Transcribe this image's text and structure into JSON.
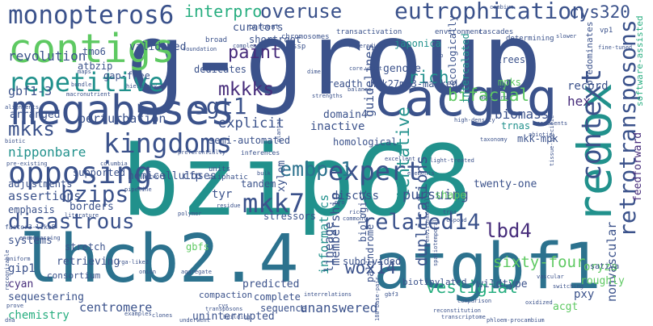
{
  "cloud": {
    "palette": {
      "purple": "#440154",
      "indigo": "#472d7b",
      "blue": "#3b528b",
      "slate": "#2c728e",
      "teal": "#21918c",
      "green": "#28ae80",
      "lime": "#5ec962",
      "yellow": "#addc30"
    },
    "words": [
      {
        "text": "g-group",
        "color": "#3b528b"
      },
      {
        "text": "bzip68",
        "color": "#21918c"
      },
      {
        "text": "lhcb2.4",
        "color": "#2c728e"
      },
      {
        "text": "atgbf1",
        "color": "#2c728e"
      },
      {
        "text": "megabases",
        "color": "#3b528b"
      },
      {
        "text": "cacgtg",
        "color": "#3b528b"
      },
      {
        "text": "contigs",
        "color": "#5ec962"
      },
      {
        "text": "redox",
        "color": "#21918c"
      },
      {
        "text": "monopteros6",
        "color": "#3b528b"
      },
      {
        "text": "eutrophication",
        "color": "#3b528b"
      },
      {
        "text": "repetitive",
        "color": "#21918c"
      },
      {
        "text": "kingdoms",
        "color": "#3b528b"
      },
      {
        "text": "opposing",
        "color": "#3b528b"
      },
      {
        "text": "disastrous",
        "color": "#3b528b"
      },
      {
        "text": "context",
        "color": "#3b528b"
      },
      {
        "text": "retrotransposons",
        "color": "#3b528b"
      },
      {
        "text": "expert",
        "color": "#3b528b"
      },
      {
        "text": "embp-1",
        "color": "#2c728e"
      },
      {
        "text": "mkk7",
        "color": "#3b528b"
      },
      {
        "text": "related14",
        "color": "#3b528b"
      },
      {
        "text": "bzips",
        "color": "#3b528b"
      },
      {
        "text": "wox14",
        "color": "#3b528b"
      },
      {
        "text": "vestigial",
        "color": "#28ae80"
      },
      {
        "text": "sixty-four",
        "color": "#5ec962"
      },
      {
        "text": "lbd4",
        "color": "#472d7b"
      },
      {
        "text": "overuse",
        "color": "#3b528b"
      },
      {
        "text": "interpro",
        "color": "#28ae80"
      },
      {
        "text": "cys320",
        "color": "#3b528b"
      },
      {
        "text": "paint",
        "color": "#472d7b"
      },
      {
        "text": "mkkks",
        "color": "#472d7b"
      },
      {
        "text": "sgt1",
        "color": "#3b528b"
      },
      {
        "text": "bifacial",
        "color": "#5ec962"
      },
      {
        "text": "mkks",
        "color": "#3b528b"
      },
      {
        "text": "revolution",
        "color": "#3b528b"
      },
      {
        "text": "gbf1-3",
        "color": "#3b528b"
      },
      {
        "text": "nipponbare",
        "color": "#21918c"
      },
      {
        "text": "assertions",
        "color": "#3b528b"
      },
      {
        "text": "perturbation",
        "color": "#3b528b"
      },
      {
        "text": "arranged",
        "color": "#3b528b"
      },
      {
        "text": "tentative",
        "color": "#21918c"
      },
      {
        "text": "duplications",
        "color": "#3b528b"
      },
      {
        "text": "membership",
        "color": "#3b528b"
      },
      {
        "text": "informatics",
        "color": "#21918c"
      },
      {
        "text": "unanswered",
        "color": "#3b528b"
      },
      {
        "text": "centromere",
        "color": "#3b528b"
      },
      {
        "text": "uninterrupted",
        "color": "#3b528b"
      },
      {
        "text": "nonvascular",
        "color": "#3b528b"
      },
      {
        "text": "feedforward",
        "color": "#472d7b"
      },
      {
        "text": "guidelines",
        "color": "#3b528b"
      },
      {
        "text": "lineage",
        "color": "#3b528b"
      },
      {
        "text": "biomass",
        "color": "#3b528b"
      },
      {
        "text": "pursuing",
        "color": "#3b528b"
      },
      {
        "text": "hex",
        "color": "#472d7b"
      },
      {
        "text": "record",
        "color": "#3b528b"
      },
      {
        "text": "rich",
        "color": "#21918c"
      },
      {
        "text": "genome",
        "color": "#3b528b"
      },
      {
        "text": "shortroot",
        "color": "#3b528b"
      },
      {
        "text": "curators",
        "color": "#3b528b"
      },
      {
        "text": "validated",
        "color": "#3b528b"
      },
      {
        "text": "dedicates",
        "color": "#3b528b"
      },
      {
        "text": "explicit",
        "color": "#3b528b"
      },
      {
        "text": "inactive",
        "color": "#3b528b"
      },
      {
        "text": "domain4",
        "color": "#3b528b"
      },
      {
        "text": "homological",
        "color": "#3b528b"
      },
      {
        "text": "hemicelluloses",
        "color": "#3b528b"
      },
      {
        "text": "tandem",
        "color": "#3b528b"
      },
      {
        "text": "stressors",
        "color": "#3b528b"
      },
      {
        "text": "tyr",
        "color": "#3b528b"
      },
      {
        "text": "cfp",
        "color": "#3b528b"
      },
      {
        "text": "xylem",
        "color": "#3b528b"
      },
      {
        "text": "twenty-one",
        "color": "#3b528b"
      },
      {
        "text": "biologist",
        "color": "#3b528b"
      },
      {
        "text": "palindrome",
        "color": "#3b528b"
      },
      {
        "text": "subdivided",
        "color": "#3b528b"
      },
      {
        "text": "biotinylated",
        "color": "#3b528b"
      },
      {
        "text": "wildtype",
        "color": "#3b528b"
      },
      {
        "text": "oryza",
        "color": "#5ec962"
      },
      {
        "text": "roughly",
        "color": "#5ec962"
      },
      {
        "text": "pxy",
        "color": "#3b528b"
      },
      {
        "text": "acgt",
        "color": "#5ec962"
      },
      {
        "text": "gip1",
        "color": "#3b528b"
      },
      {
        "text": "cyan",
        "color": "#472d7b"
      },
      {
        "text": "sequestering",
        "color": "#3b528b"
      },
      {
        "text": "chemistry",
        "color": "#28ae80"
      },
      {
        "text": "retrieving",
        "color": "#3b528b"
      },
      {
        "text": "predicted",
        "color": "#3b528b"
      },
      {
        "text": "complete",
        "color": "#3b528b"
      },
      {
        "text": "sequence",
        "color": "#3b528b"
      },
      {
        "text": "compaction",
        "color": "#3b528b"
      },
      {
        "text": "gbfs",
        "color": "#5ec962"
      },
      {
        "text": "borders",
        "color": "#3b528b"
      },
      {
        "text": "supported",
        "color": "#3b528b"
      },
      {
        "text": "adjustments",
        "color": "#3b528b"
      },
      {
        "text": "emphasis",
        "color": "#3b528b"
      },
      {
        "text": "systems",
        "color": "#3b528b"
      },
      {
        "text": "stretch",
        "color": "#3b528b"
      },
      {
        "text": "consortium",
        "color": "#3b528b"
      },
      {
        "text": "tmo6",
        "color": "#3b528b"
      },
      {
        "text": "atbzip",
        "color": "#3b528b"
      },
      {
        "text": "gap-free",
        "color": "#3b528b"
      },
      {
        "text": "semi-automated",
        "color": "#3b528b"
      },
      {
        "text": "breadth",
        "color": "#3b528b"
      },
      {
        "text": "h3k27me3-marked",
        "color": "#3b528b"
      },
      {
        "text": "trnas",
        "color": "#21918c"
      },
      {
        "text": "mkk-mpk",
        "color": "#3b528b"
      },
      {
        "text": "japonica",
        "color": "#21918c"
      },
      {
        "text": "ecologically",
        "color": "#3b528b"
      },
      {
        "text": "intercalated",
        "color": "#21918c"
      },
      {
        "text": "trees",
        "color": "#3b528b"
      },
      {
        "text": "mpks",
        "color": "#5ec962"
      },
      {
        "text": "predominates",
        "color": "#3b528b"
      },
      {
        "text": "software-assisted",
        "color": "#28ae80"
      },
      {
        "text": "ssp",
        "color": "#3b528b"
      },
      {
        "text": "broad",
        "color": "#3b528b"
      },
      {
        "text": "percent",
        "color": "#3b528b"
      },
      {
        "text": "chromosomes",
        "color": "#3b528b"
      },
      {
        "text": "transactivation",
        "color": "#3b528b"
      },
      {
        "text": "environment",
        "color": "#3b528b"
      },
      {
        "text": "cascades",
        "color": "#3b528b"
      },
      {
        "text": "determining",
        "color": "#3b528b"
      },
      {
        "text": "vp1",
        "color": "#3b528b"
      },
      {
        "text": "fine-tuned",
        "color": "#3b528b"
      },
      {
        "text": "slower",
        "color": "#3b528b"
      },
      {
        "text": "cambium",
        "color": "#3b528b"
      },
      {
        "text": "foundation",
        "color": "#3b528b"
      },
      {
        "text": "complement",
        "color": "#3b528b"
      },
      {
        "text": "heterodimer",
        "color": "#3b528b"
      },
      {
        "text": "mb",
        "color": "#3b528b"
      },
      {
        "text": "core",
        "color": "#3b528b"
      },
      {
        "text": "wheat",
        "color": "#3b528b"
      },
      {
        "text": "hierarchy",
        "color": "#3b528b"
      },
      {
        "text": "bundle",
        "color": "#3b528b"
      },
      {
        "text": "maps",
        "color": "#3b528b"
      },
      {
        "text": "macronutrient",
        "color": "#3b528b"
      },
      {
        "text": "strengths",
        "color": "#3b528b"
      },
      {
        "text": "alignments",
        "color": "#3b528b"
      },
      {
        "text": "monomers",
        "color": "#3b528b"
      },
      {
        "text": "represents",
        "color": "#3b528b"
      },
      {
        "text": "abiotic",
        "color": "#3b528b"
      },
      {
        "text": "tissue-specific",
        "color": "#3b528b"
      },
      {
        "text": "high-density",
        "color": "#3b528b"
      },
      {
        "text": "columbia",
        "color": "#3b528b"
      },
      {
        "text": "preferentially",
        "color": "#3b528b"
      },
      {
        "text": "inferences",
        "color": "#3b528b"
      },
      {
        "text": "units",
        "color": "#3b528b"
      },
      {
        "text": "aliphatic",
        "color": "#3b528b"
      },
      {
        "text": "network",
        "color": "#3b528b"
      },
      {
        "text": "pipeline",
        "color": "#3b528b"
      },
      {
        "text": "bulk",
        "color": "#3b528b"
      },
      {
        "text": "excellent",
        "color": "#3b528b"
      },
      {
        "text": "light-treated",
        "color": "#3b528b"
      },
      {
        "text": "elements",
        "color": "#3b528b"
      },
      {
        "text": "discuss",
        "color": "#3b528b"
      },
      {
        "text": "shape",
        "color": "#5ec962"
      },
      {
        "text": "sativa",
        "color": "#3b528b"
      },
      {
        "text": "factor3-like5",
        "color": "#3b528b"
      },
      {
        "text": "literature",
        "color": "#3b528b"
      },
      {
        "text": "pre-existing",
        "color": "#3b528b"
      },
      {
        "text": "biotic",
        "color": "#3b528b"
      },
      {
        "text": "residue",
        "color": "#3b528b"
      },
      {
        "text": "rice",
        "color": "#3b528b"
      },
      {
        "text": "commonly",
        "color": "#3b528b"
      },
      {
        "text": "trna",
        "color": "#3b528b"
      },
      {
        "text": "respond",
        "color": "#3b528b"
      },
      {
        "text": "polymer",
        "color": "#3b528b"
      },
      {
        "text": "uniform",
        "color": "#3b528b"
      },
      {
        "text": "encompassing",
        "color": "#3b528b"
      },
      {
        "text": "recognizable",
        "color": "#3b528b"
      },
      {
        "text": "rga-like2",
        "color": "#3b528b"
      },
      {
        "text": "aggregate",
        "color": "#3b528b"
      },
      {
        "text": "onion",
        "color": "#3b528b"
      },
      {
        "text": "prove",
        "color": "#3b528b"
      },
      {
        "text": "examples",
        "color": "#3b528b"
      },
      {
        "text": "cys",
        "color": "#3b528b"
      },
      {
        "text": "clones",
        "color": "#3b528b"
      },
      {
        "text": "building",
        "color": "#3b528b"
      },
      {
        "text": "transposons",
        "color": "#3b528b"
      },
      {
        "text": "interrelations",
        "color": "#3b528b"
      },
      {
        "text": "underwent",
        "color": "#3b528b"
      },
      {
        "text": "dna",
        "color": "#3b528b"
      },
      {
        "text": "180-base-pair",
        "color": "#3b528b"
      },
      {
        "text": "gbf3",
        "color": "#3b528b"
      },
      {
        "text": "transcriptome",
        "color": "#3b528b"
      },
      {
        "text": "phloem-procambium",
        "color": "#3b528b"
      },
      {
        "text": "reconstitution",
        "color": "#3b528b"
      },
      {
        "text": "comparison",
        "color": "#3b528b"
      },
      {
        "text": "switching",
        "color": "#3b528b"
      },
      {
        "text": "vascular",
        "color": "#3b528b"
      },
      {
        "text": "oxidized",
        "color": "#3b528b"
      },
      {
        "text": "environmentally",
        "color": "#3b528b"
      },
      {
        "text": "spatiotemporal",
        "color": "#3b528b"
      },
      {
        "text": "dimer",
        "color": "#3b528b"
      },
      {
        "text": "balance",
        "color": "#3b528b"
      },
      {
        "text": "pro",
        "color": "#3b528b"
      },
      {
        "text": "planta",
        "color": "#3b528b"
      },
      {
        "text": "taxonomy",
        "color": "#3b528b"
      }
    ]
  }
}
